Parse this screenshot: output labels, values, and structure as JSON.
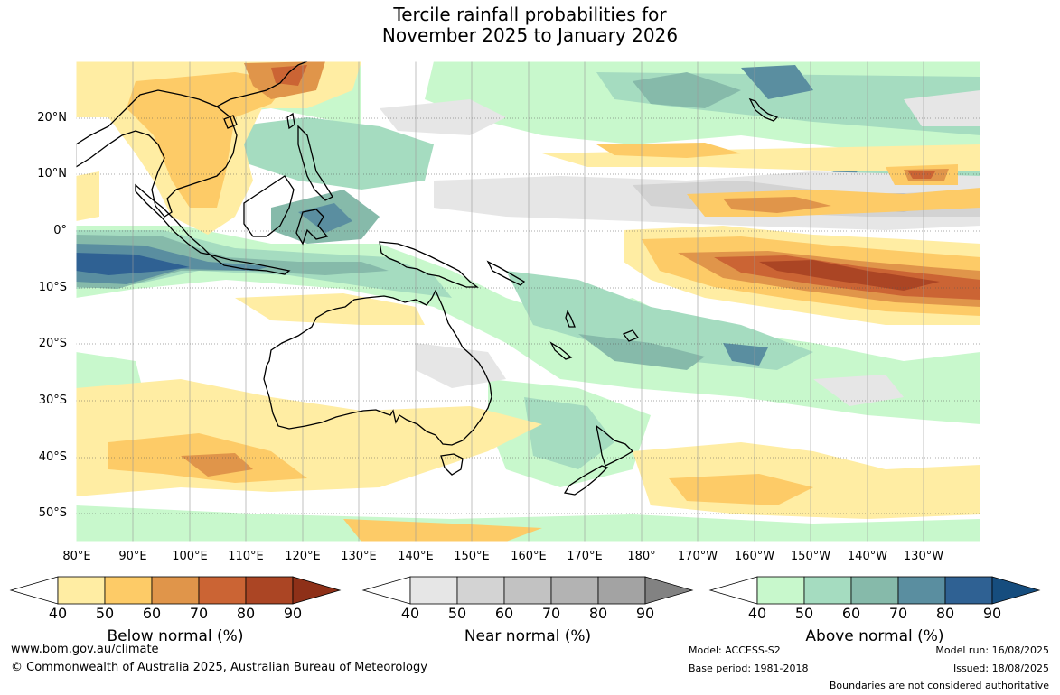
{
  "title_line1": "Tercile rainfall probabilities for",
  "title_line2": "November 2025 to January 2026",
  "lat_labels": [
    "20°N",
    "10°N",
    "0°",
    "10°S",
    "20°S",
    "30°S",
    "40°S",
    "50°S"
  ],
  "lon_labels": [
    "80°E",
    "90°E",
    "100°E",
    "110°E",
    "120°E",
    "130°E",
    "140°E",
    "150°E",
    "160°E",
    "170°E",
    "180°",
    "170°W",
    "160°W",
    "150°W",
    "140°W",
    "130°W"
  ],
  "colorbars": [
    {
      "title": "Below normal (%)",
      "ticks": [
        "40",
        "50",
        "60",
        "70",
        "80",
        "90"
      ],
      "colors": [
        "#ffeda3",
        "#fdcb67",
        "#e0954a",
        "#cb6434",
        "#ab4524"
      ],
      "extend_color": "#8e3018"
    },
    {
      "title": "Near normal (%)",
      "ticks": [
        "40",
        "50",
        "60",
        "70",
        "80",
        "90"
      ],
      "colors": [
        "#e6e6e6",
        "#d3d3d3",
        "#c2c2c2",
        "#b3b3b3",
        "#a3a3a3"
      ],
      "extend_color": "#828282"
    },
    {
      "title": "Above normal (%)",
      "ticks": [
        "40",
        "50",
        "60",
        "70",
        "80",
        "90"
      ],
      "colors": [
        "#c8f8cc",
        "#a5dcc0",
        "#86baaa",
        "#5a8ea0",
        "#2f6193"
      ],
      "extend_color": "#164d7e"
    }
  ],
  "footer": {
    "url": "www.bom.gov.au/climate",
    "copyright": "© Commonwealth of Australia 2025, Australian Bureau of Meteorology",
    "model": "Model: ACCESS-S2",
    "base_period": "Base period: 1981-2018",
    "model_run": "Model run: 16/08/2025",
    "issued": "Issued: 18/08/2025",
    "boundaries": "Boundaries are not considered authoritative"
  }
}
